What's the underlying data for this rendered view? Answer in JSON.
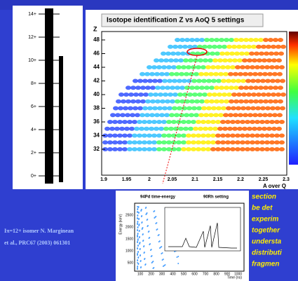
{
  "level_scheme": {
    "spins": [
      "14+",
      "12+",
      "10+",
      "8+",
      "6+",
      "4+",
      "2+",
      "0+"
    ]
  },
  "caption": [
    "Iπ=12+ isomer N. Marginean",
    "et al., PRC67 (2003) 061301"
  ],
  "main_plot": {
    "title": "Isotope identification Z vs AoQ 5 settings",
    "y_label": "Z",
    "x_label": "A over Q",
    "y_ticks": [
      "32",
      "34",
      "36",
      "38",
      "40",
      "42",
      "44",
      "46",
      "48"
    ],
    "x_ticks": [
      "1.9",
      "1.95",
      "2",
      "2.05",
      "2.1",
      "2.15",
      "2.2",
      "2.25",
      "2.3"
    ]
  },
  "inset_plot": {
    "title": "94Pd time-energy",
    "setting": "90Rh setting",
    "y_label": "Energy (keV)",
    "x_label": "Time (ns)",
    "y_ticks": [
      "500",
      "1000",
      "1500",
      "2000",
      "2500"
    ],
    "x_ticks": [
      "100",
      "200",
      "300",
      "400",
      "500",
      "600",
      "700",
      "800",
      "900",
      "1000"
    ]
  },
  "side_text": [
    "section",
    "be det",
    "experim",
    "together",
    "understa",
    "distributi",
    "fragmen"
  ]
}
